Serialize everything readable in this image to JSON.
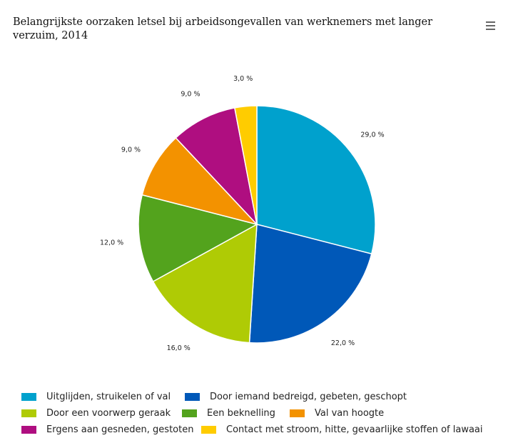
{
  "header": {
    "title": "Belangrijkste oorzaken letsel bij arbeidsongevallen van werknemers met langer verzuim, 2014",
    "menu_icon": "hamburger-menu-icon"
  },
  "chart_data": {
    "type": "pie",
    "title": "Belangrijkste oorzaken letsel bij arbeidsongevallen van werknemers met langer verzuim, 2014",
    "start_angle": "12 o'clock",
    "direction": "clockwise",
    "legend_position": "bottom",
    "unit": "%",
    "slices": [
      {
        "label": "Uitglijden, struikelen of val",
        "value": 29.0,
        "display": "29,0 %",
        "color": "#00a1cd"
      },
      {
        "label": "Door iemand bedreigd, gebeten, geschopt",
        "value": 22.0,
        "display": "22,0 %",
        "color": "#0058b8"
      },
      {
        "label": "Door een voorwerp geraak",
        "value": 16.0,
        "display": "16,0 %",
        "color": "#afcb05"
      },
      {
        "label": "Een beknelling",
        "value": 12.0,
        "display": "12,0 %",
        "color": "#53a31d"
      },
      {
        "label": "Val van hoogte",
        "value": 9.0,
        "display": "9,0 %",
        "color": "#f39200"
      },
      {
        "label": "Ergens aan gesneden, gestoten",
        "value": 9.0,
        "display": "9,0 %",
        "color": "#af0e80"
      },
      {
        "label": "Contact met stroom, hitte, gevaarlijke stoffen of lawaai",
        "value": 3.0,
        "display": "3,0 %",
        "color": "#ffcc00"
      }
    ]
  }
}
